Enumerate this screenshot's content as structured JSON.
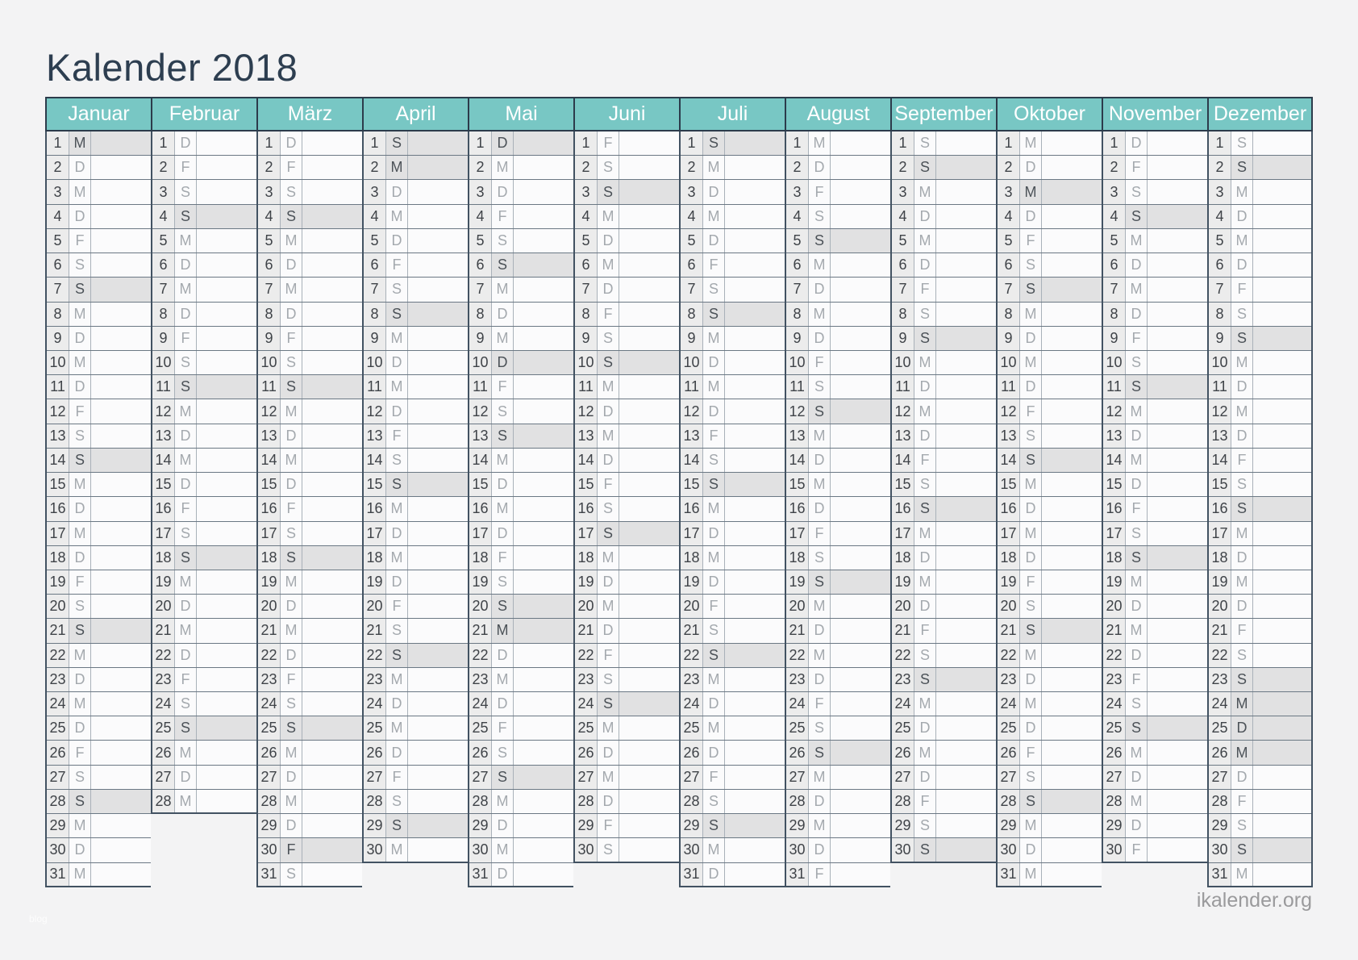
{
  "title": "Kalender 2018",
  "year": "2018",
  "weekday_letter_legend": {
    "Montag": "M",
    "Dienstag": "D",
    "Mittwoch": "M",
    "Donnerstag": "D",
    "Freitag": "F",
    "Samstag": "S",
    "Sonntag": "S"
  },
  "months": [
    {
      "name": "Januar",
      "days": 31,
      "letters": "MDMDFSSMDMDFSSMDMDFSSMDMDFSSMDM",
      "highlighted": [
        1,
        7,
        14,
        21,
        28
      ]
    },
    {
      "name": "Februar",
      "days": 28,
      "letters": "DFSSMDMDFSSMDMDFSSMDMDFSSMDM",
      "highlighted": [
        4,
        11,
        18,
        25
      ]
    },
    {
      "name": "März",
      "days": 31,
      "letters": "DFSSMDMDFSSMDMDFSSMDMDFSSMDMDFS",
      "highlighted": [
        4,
        11,
        18,
        25,
        30
      ]
    },
    {
      "name": "April",
      "days": 30,
      "letters": "SMDMDFSSMDMDFSSMDMDFSSMDMDFSSM",
      "highlighted": [
        1,
        2,
        8,
        15,
        22,
        29
      ]
    },
    {
      "name": "Mai",
      "days": 31,
      "letters": "DMDFSSMDMDFSSMDMDFSSMDMDFSSMDMD",
      "highlighted": [
        1,
        6,
        10,
        13,
        20,
        21,
        27
      ]
    },
    {
      "name": "Juni",
      "days": 30,
      "letters": "FSSMDMDFSSMDMDFSSMDMDFSSMDMDFS",
      "highlighted": [
        3,
        10,
        17,
        24
      ]
    },
    {
      "name": "Juli",
      "days": 31,
      "letters": "SMDMDFSSMDMDFSSMDMDFSSMDMDFSSMD",
      "highlighted": [
        1,
        8,
        15,
        22,
        29
      ]
    },
    {
      "name": "August",
      "days": 31,
      "letters": "MDFSSMDMDFSSMDMDFSSMDMDFSSMDMDF",
      "highlighted": [
        5,
        12,
        19,
        26
      ]
    },
    {
      "name": "September",
      "days": 30,
      "letters": "SSMDMDFSSMDMDFSSMDMDFSSMDMDFSS",
      "highlighted": [
        2,
        9,
        16,
        23,
        30
      ]
    },
    {
      "name": "Oktober",
      "days": 31,
      "letters": "MDMDFSSMDMDFSSMDMDFSSMDMDFSSMDM",
      "highlighted": [
        3,
        7,
        14,
        21,
        28
      ]
    },
    {
      "name": "November",
      "days": 30,
      "letters": "DFSSMDMDFSSMDMDFSSMDMDFSSMDMDF",
      "highlighted": [
        4,
        11,
        18,
        25
      ]
    },
    {
      "name": "Dezember",
      "days": 31,
      "letters": "SSMDMDFSSMDMDFSSMDMDFSSMDMDFSSM",
      "highlighted": [
        2,
        9,
        16,
        23,
        24,
        25,
        26,
        30
      ]
    }
  ],
  "footer": {
    "site": "ikalender.org",
    "watermark": "blog"
  },
  "colors": {
    "page_background": "#f3f3f4",
    "header_teal": "#78c7c4",
    "header_border": "#2c3b4b",
    "title_text": "#2d3e50",
    "month_outline": "#425262",
    "row_separator": "#6b7884",
    "cell_separator": "#a9b1b9",
    "day_number_bg": "#ececec",
    "cell_bg": "#fbfbfc",
    "highlight_bg": "#e1e1e2",
    "day_number_text": "#3f4348",
    "weekday_letter_text": "#a4a9ae",
    "weekday_letter_highlight_text": "#4c5258",
    "footer_text": "#9a9a9c"
  }
}
